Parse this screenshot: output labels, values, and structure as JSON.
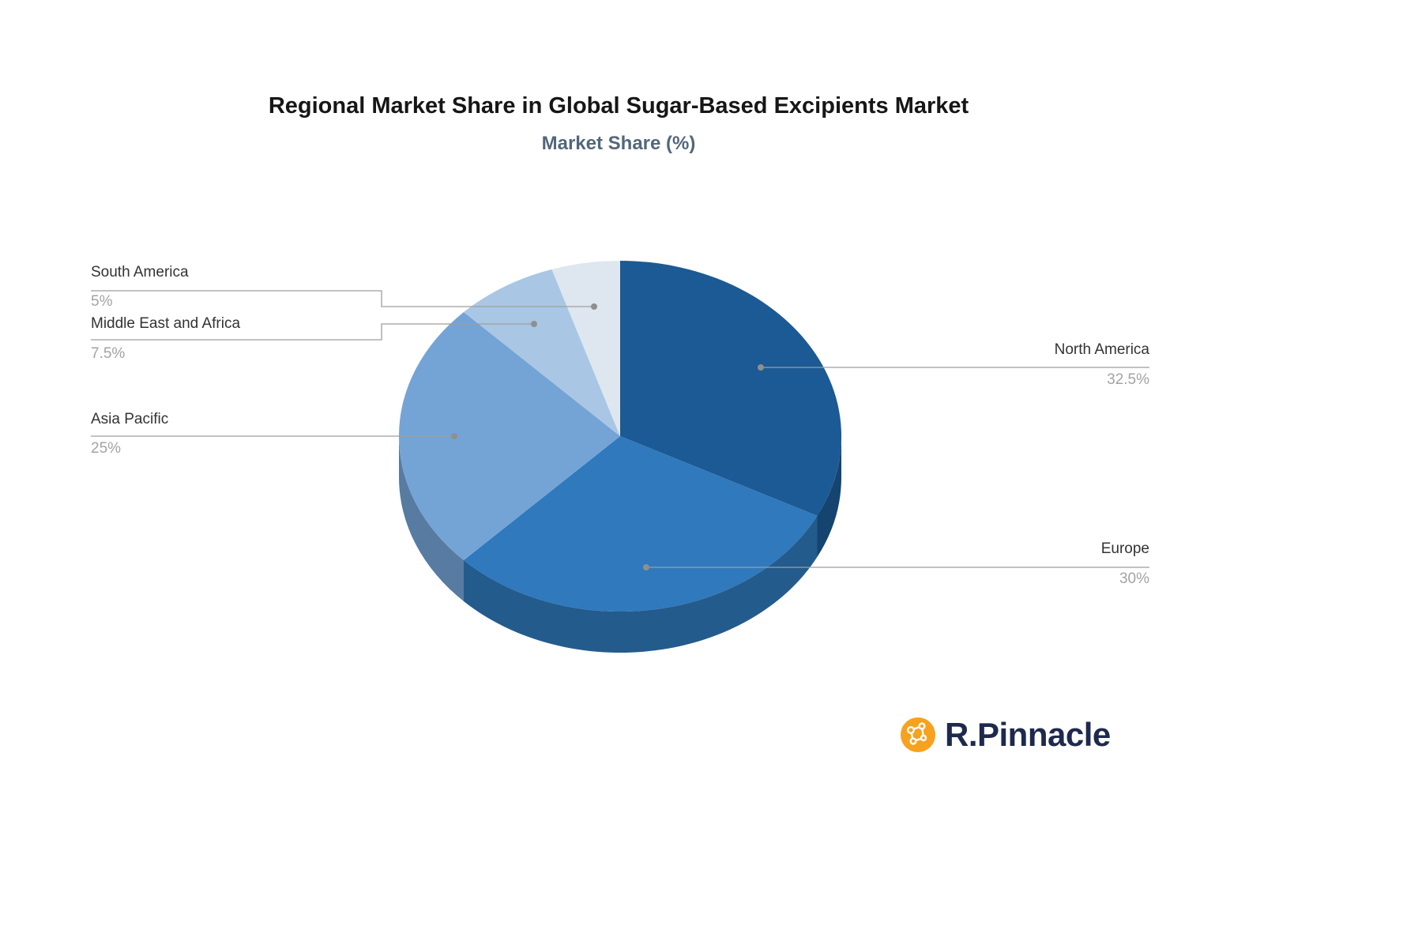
{
  "chart_data": {
    "type": "pie",
    "style": "3d-pie",
    "title": "Regional Market Share in Global Sugar-Based Excipients Market",
    "subtitle": "Market Share (%)",
    "start_angle_deg": -90,
    "direction": "clockwise",
    "legend_position": "callout-labels",
    "slices": [
      {
        "label": "North America",
        "value": 32.5,
        "pct_label": "32.5%",
        "color": "#1B5A94"
      },
      {
        "label": "Europe",
        "value": 30,
        "pct_label": "30%",
        "color": "#2F79BC"
      },
      {
        "label": "Asia Pacific",
        "value": 25,
        "pct_label": "25%",
        "color": "#74A4D6"
      },
      {
        "label": "Middle East and Africa",
        "value": 7.5,
        "pct_label": "7.5%",
        "color": "#A9C7E5"
      },
      {
        "label": "South America",
        "value": 5,
        "pct_label": "5%",
        "color": "#DEE7F0"
      }
    ]
  },
  "colors": {
    "leader_line": "#9E9E9E",
    "leader_dot": "#8F8F8F",
    "label_text": "#333333",
    "pct_text": "#A3A3A3",
    "subtitle_text": "#53677A",
    "logo_icon": "#F6A21E",
    "logo_text": "#1E2A4D"
  },
  "logo": {
    "text": "R.Pinnacle",
    "icon": "network-nodes-icon"
  }
}
